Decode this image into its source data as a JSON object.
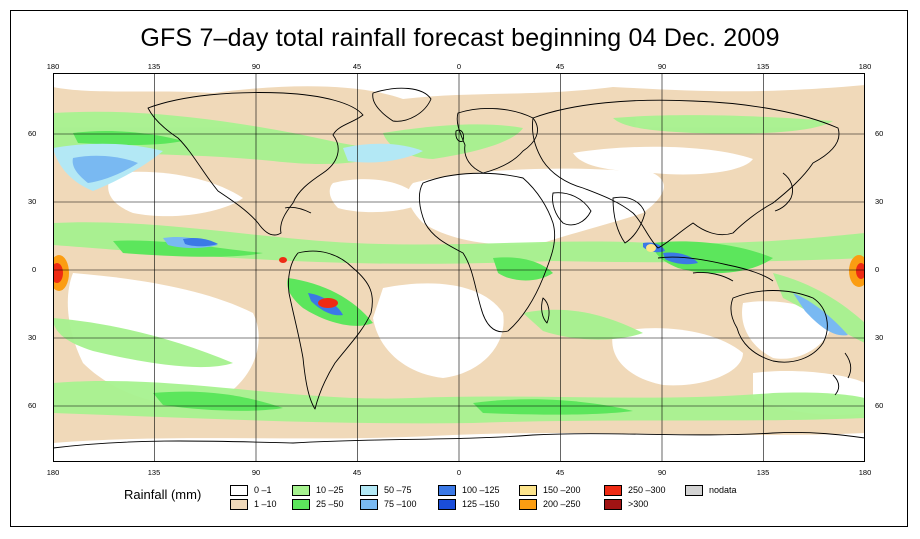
{
  "title": "GFS 7–day total rainfall forecast beginning 04 Dec. 2009",
  "axes": {
    "lon_ticks": [
      "180",
      "135",
      "90",
      "45",
      "0",
      "45",
      "90",
      "135",
      "180"
    ],
    "lat_ticks": [
      "60",
      "30",
      "0",
      "30",
      "60"
    ]
  },
  "legend": {
    "title": "Rainfall (mm)",
    "items": [
      {
        "label": "0 –1",
        "color": "#ffffff"
      },
      {
        "label": "1 –10",
        "color": "#f0d9b9"
      },
      {
        "label": "10 –25",
        "color": "#a6f28f"
      },
      {
        "label": "25 –50",
        "color": "#5ce65c"
      },
      {
        "label": "50 –75",
        "color": "#b3e8f5"
      },
      {
        "label": "75 –100",
        "color": "#79b9f2"
      },
      {
        "label": "100 –125",
        "color": "#3b79e6"
      },
      {
        "label": "125 –150",
        "color": "#1a4dd9"
      },
      {
        "label": "150 –200",
        "color": "#fde48c"
      },
      {
        "label": "200 –250",
        "color": "#fb9d12"
      },
      {
        "label": "250 –300",
        "color": "#ee2b14"
      },
      {
        "label": ">300",
        "color": "#a01313"
      },
      {
        "label": "nodata",
        "color": "#d3d3d3"
      }
    ]
  },
  "map": {
    "ocean_color": "#f0d9b9",
    "dry_color": "#ffffff",
    "grid_color": "#000000"
  }
}
